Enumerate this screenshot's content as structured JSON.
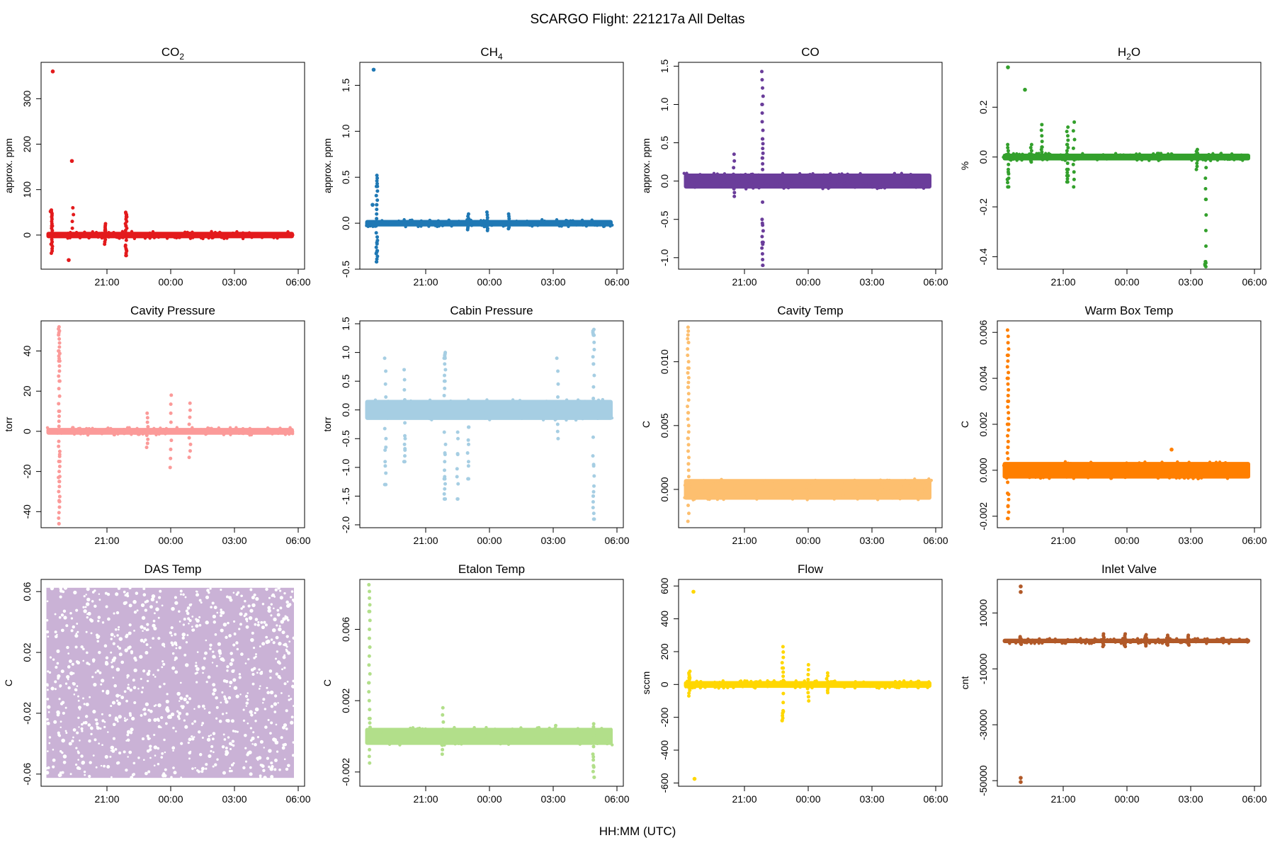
{
  "figure": {
    "title": "SCARGO Flight: 221217a  All Deltas",
    "xlabel": "HH:MM (UTC)",
    "x_tick_labels": [
      "21:00",
      "00:00",
      "03:00",
      "06:00"
    ]
  },
  "chart_data": [
    {
      "type": "scatter",
      "title": "CO",
      "title_sub": "2",
      "ylabel": "approx. ppm",
      "color": "#e31a1c",
      "ylim": [
        -75,
        380
      ],
      "yticks": [
        0,
        100,
        200,
        300
      ],
      "ytick_labels": [
        "0",
        "100",
        "200",
        "300"
      ],
      "band": [
        -4,
        4
      ],
      "spikes": [
        [
          18.4,
          [
            0,
            -20,
            -40,
            20,
            40,
            55
          ]
        ],
        [
          20.9,
          [
            -20,
            10,
            25
          ]
        ],
        [
          21.9,
          [
            -45,
            -25,
            20,
            40,
            50
          ]
        ],
        [
          19.4,
          [
            60
          ]
        ]
      ],
      "points": [
        [
          18.45,
          360
        ],
        [
          19.35,
          163
        ],
        [
          18.35,
          52
        ],
        [
          19.2,
          -55
        ]
      ]
    },
    {
      "type": "scatter",
      "title": "CH",
      "title_sub": "4",
      "ylabel": "approx. ppm",
      "color": "#1f78b4",
      "ylim": [
        -0.5,
        1.75
      ],
      "yticks": [
        -0.5,
        0.0,
        0.5,
        1.0,
        1.5
      ],
      "ytick_labels": [
        "-0.5",
        "0.0",
        "0.5",
        "1.0",
        "1.5"
      ],
      "band": [
        -0.02,
        0.02
      ],
      "spikes": [
        [
          18.7,
          [
            -0.42,
            -0.3,
            -0.15,
            0.2,
            0.4,
            0.52
          ]
        ],
        [
          23.0,
          [
            -0.07,
            0.1
          ]
        ],
        [
          23.9,
          [
            -0.08,
            0.12
          ]
        ],
        [
          24.9,
          [
            -0.06,
            0.1
          ]
        ]
      ],
      "points": [
        [
          18.55,
          1.67
        ],
        [
          18.5,
          0.2
        ]
      ]
    },
    {
      "type": "scatter",
      "title": "CO",
      "title_sub": "",
      "ylabel": "approx. ppm",
      "color": "#6a3d9a",
      "ylim": [
        -1.15,
        1.55
      ],
      "yticks": [
        -1.0,
        -0.5,
        0.0,
        0.5,
        1.0,
        1.5
      ],
      "ytick_labels": [
        "-1.0",
        "-0.5",
        "0.0",
        "0.5",
        "1.0",
        "1.5"
      ],
      "band": [
        -0.08,
        0.08
      ],
      "spikes": [
        [
          20.5,
          [
            -0.2,
            0.35
          ]
        ],
        [
          21.85,
          [
            -1.1,
            -0.8,
            -0.5,
            0.3,
            0.55,
            1.0,
            1.43
          ]
        ]
      ],
      "points": []
    },
    {
      "type": "scatter",
      "title": "H",
      "title_sub": "2",
      "title_after": "O",
      "ylabel": "%",
      "color": "#33a02c",
      "ylim": [
        -0.45,
        0.38
      ],
      "yticks": [
        -0.4,
        -0.2,
        0.0,
        0.2
      ],
      "ytick_labels": [
        "-0.4",
        "-0.2",
        "0.0",
        "0.2"
      ],
      "band": [
        -0.008,
        0.008
      ],
      "spikes": [
        [
          18.4,
          [
            -0.12,
            -0.05,
            0.05
          ]
        ],
        [
          19.5,
          [
            -0.02,
            0.05
          ]
        ],
        [
          20.0,
          [
            0.04,
            0.13
          ]
        ],
        [
          21.2,
          [
            -0.1,
            -0.05,
            0.05,
            0.12
          ]
        ],
        [
          21.5,
          [
            -0.12,
            0.14
          ]
        ],
        [
          27.3,
          [
            -0.05,
            0.03
          ]
        ],
        [
          27.7,
          [
            -0.17,
            -0.42,
            -0.44
          ]
        ]
      ],
      "points": [
        [
          18.4,
          0.36
        ],
        [
          19.2,
          0.27
        ]
      ]
    },
    {
      "type": "scatter",
      "title": "Cavity Pressure",
      "title_sub": "",
      "ylabel": "torr",
      "color": "#fb9a99",
      "ylim": [
        -48,
        55
      ],
      "yticks": [
        -40,
        -20,
        0,
        20,
        40
      ],
      "ytick_labels": [
        "-40",
        "-20",
        "0",
        "20",
        "40"
      ],
      "band": [
        -1,
        1
      ],
      "spikes": [
        [
          18.75,
          [
            -46,
            -35,
            -25,
            -15,
            -5,
            10,
            25,
            35,
            40,
            48,
            52
          ]
        ],
        [
          22.9,
          [
            -8,
            9
          ]
        ],
        [
          24.0,
          [
            -18,
            18
          ]
        ],
        [
          24.9,
          [
            -13,
            14
          ]
        ]
      ],
      "points": []
    },
    {
      "type": "scatter",
      "title": "Cabin Pressure",
      "title_sub": "",
      "ylabel": "torr",
      "color": "#a6cee3",
      "ylim": [
        -2.05,
        1.55
      ],
      "yticks": [
        -2.0,
        -1.5,
        -1.0,
        -0.5,
        0.0,
        0.5,
        1.0,
        1.5
      ],
      "ytick_labels": [
        "-2.0",
        "-1.5",
        "-1.0",
        "-0.5",
        "0.0",
        "0.5",
        "1.0",
        "1.5"
      ],
      "band": [
        -0.15,
        0.15
      ],
      "spikes": [
        [
          19.1,
          [
            -1.3,
            -0.5,
            0.9
          ]
        ],
        [
          20.0,
          [
            -0.9,
            -0.5,
            0.7
          ]
        ],
        [
          21.9,
          [
            -1.55,
            -1.2,
            -0.6,
            0.5,
            0.9,
            1.0
          ]
        ],
        [
          22.5,
          [
            -1.55,
            -0.5
          ]
        ],
        [
          23.0,
          [
            -1.2,
            -0.3
          ]
        ],
        [
          27.2,
          [
            -0.5,
            0.9
          ]
        ],
        [
          28.9,
          [
            -1.9,
            -1.5,
            -0.8,
            0.8,
            1.3,
            1.4
          ]
        ]
      ],
      "points": []
    },
    {
      "type": "scatter",
      "title": "Cavity Temp",
      "title_sub": "",
      "ylabel": "C",
      "color": "#fdbf6f",
      "ylim": [
        -0.003,
        0.0132
      ],
      "yticks": [
        0.0,
        0.005,
        0.01
      ],
      "ytick_labels": [
        "0.000",
        "0.005",
        "0.010"
      ],
      "band": [
        -0.0007,
        0.0007
      ],
      "spikes": [
        [
          18.35,
          [
            -0.0025,
            0.002,
            0.004,
            0.006,
            0.008,
            0.0095,
            0.0115,
            0.0127
          ]
        ]
      ],
      "points": []
    },
    {
      "type": "scatter",
      "title": "Warm Box Temp",
      "title_sub": "",
      "ylabel": "C",
      "color": "#ff7f00",
      "ylim": [
        -0.0025,
        0.0065
      ],
      "yticks": [
        -0.002,
        0.0,
        0.002,
        0.004,
        0.006
      ],
      "ytick_labels": [
        "-0.002",
        "0.000",
        "0.002",
        "0.004",
        "0.006"
      ],
      "band": [
        -0.0003,
        0.0003
      ],
      "spikes": [
        [
          18.4,
          [
            -0.0021,
            -0.001,
            0.001,
            0.002,
            0.003,
            0.004,
            0.005,
            0.0061
          ]
        ]
      ],
      "points": [
        [
          26.1,
          0.0009
        ]
      ]
    },
    {
      "type": "scatter",
      "title": "DAS Temp",
      "title_sub": "",
      "ylabel": "C",
      "color": "#cab2d6",
      "ylim": [
        -0.068,
        0.068
      ],
      "yticks": [
        -0.06,
        -0.02,
        0.02,
        0.06
      ],
      "ytick_labels": [
        "-0.06",
        "-0.02",
        "0.02",
        "0.06"
      ],
      "band": [
        -0.0625,
        0.0625
      ],
      "fill": true,
      "spikes": [],
      "points": []
    },
    {
      "type": "scatter",
      "title": "Etalon Temp",
      "title_sub": "",
      "ylabel": "C",
      "color": "#b2df8a",
      "ylim": [
        -0.0028,
        0.0088
      ],
      "yticks": [
        -0.002,
        0.002,
        0.006
      ],
      "ytick_labels": [
        "-0.002",
        "0.002",
        "0.006"
      ],
      "band": [
        -0.0004,
        0.0004
      ],
      "spikes": [
        [
          18.35,
          [
            -0.0015,
            0.001,
            0.003,
            0.005,
            0.007,
            0.0085
          ]
        ],
        [
          21.8,
          [
            -0.001,
            0.0016
          ]
        ],
        [
          27.1,
          [
            0.0006
          ]
        ],
        [
          28.9,
          [
            -0.0023,
            -0.001,
            0.0007
          ]
        ]
      ],
      "points": []
    },
    {
      "type": "scatter",
      "title": "Flow",
      "title_sub": "",
      "ylabel": "sccm",
      "color": "#ffd700",
      "ylim": [
        -620,
        640
      ],
      "yticks": [
        -600,
        -400,
        -200,
        0,
        200,
        400,
        600
      ],
      "ytick_labels": [
        "-600",
        "-400",
        "-200",
        "0",
        "200",
        "400",
        "600"
      ],
      "band": [
        -12,
        12
      ],
      "spikes": [
        [
          18.4,
          [
            -70,
            40,
            80
          ]
        ],
        [
          22.8,
          [
            -220,
            -160,
            100,
            230
          ]
        ],
        [
          24.0,
          [
            -100,
            120
          ]
        ],
        [
          24.9,
          [
            -50,
            70
          ]
        ]
      ],
      "points": [
        [
          18.6,
          565
        ],
        [
          18.65,
          -575
        ]
      ]
    },
    {
      "type": "scatter",
      "title": "Inlet Valve",
      "title_sub": "",
      "ylabel": "cnt",
      "color": "#b15928",
      "ylim": [
        -52000,
        22000
      ],
      "yticks": [
        -50000,
        -30000,
        -10000,
        10000
      ],
      "ytick_labels": [
        "-50000",
        "-30000",
        "-10000",
        "10000"
      ],
      "band": [
        -300,
        300
      ],
      "spikes": [
        [
          19.0,
          [
            -1200,
            1500
          ]
        ],
        [
          22.9,
          [
            -2000,
            2500
          ]
        ],
        [
          23.9,
          [
            -2000,
            2500
          ]
        ],
        [
          24.9,
          [
            -1800,
            2200
          ]
        ],
        [
          25.9,
          [
            -1500,
            2000
          ]
        ],
        [
          26.9,
          [
            -1500,
            2000
          ]
        ]
      ],
      "points": [
        [
          19.0,
          19500
        ],
        [
          19.0,
          17500
        ],
        [
          19.0,
          -49000
        ],
        [
          19.0,
          -50500
        ]
      ]
    }
  ]
}
